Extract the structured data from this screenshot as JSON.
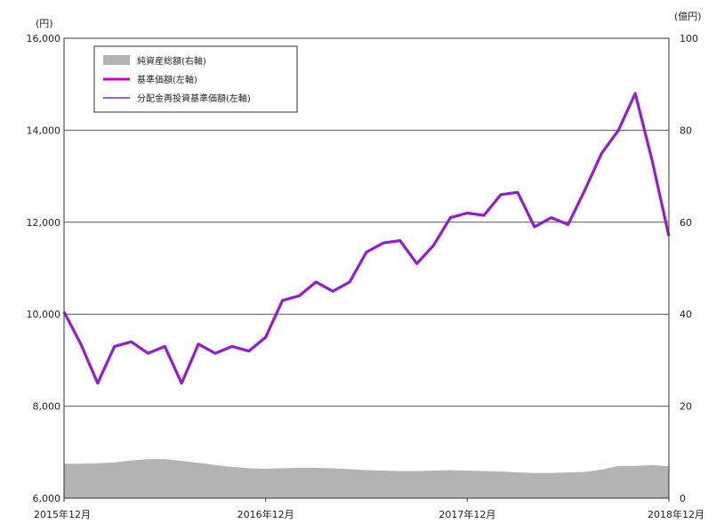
{
  "chart_data": {
    "type": "line",
    "title": "",
    "left_axis": {
      "unit": "(円)",
      "ylim": [
        6000,
        16000
      ],
      "ticks": [
        6000,
        8000,
        10000,
        12000,
        14000,
        16000
      ],
      "tick_labels": [
        "6,000",
        "8,000",
        "10,000",
        "12,000",
        "14,000",
        "16,000"
      ]
    },
    "right_axis": {
      "unit": "(億円)",
      "ylim": [
        0,
        100
      ],
      "ticks": [
        0,
        20,
        40,
        60,
        80,
        100
      ],
      "tick_labels": [
        "0",
        "20",
        "40",
        "60",
        "80",
        "100"
      ]
    },
    "x_axis": {
      "range": [
        "2015-12",
        "2018-12"
      ],
      "ticks": [
        "2015-12",
        "2016-12",
        "2017-12",
        "2018-12"
      ],
      "tick_labels": [
        "2015年12月",
        "2016年12月",
        "2017年12月",
        "2018年12月"
      ]
    },
    "grid": "horizontal",
    "legend_position": "top-left",
    "series": [
      {
        "name": "純資産総額(右軸)",
        "kind": "area",
        "axis": "right",
        "color": "#b3b3b3",
        "x": [
          "2015-12",
          "2016-01",
          "2016-02",
          "2016-03",
          "2016-04",
          "2016-05",
          "2016-06",
          "2016-07",
          "2016-08",
          "2016-09",
          "2016-10",
          "2016-11",
          "2016-12",
          "2017-01",
          "2017-02",
          "2017-03",
          "2017-04",
          "2017-05",
          "2017-06",
          "2017-07",
          "2017-08",
          "2017-09",
          "2017-10",
          "2017-11",
          "2017-12",
          "2018-01",
          "2018-02",
          "2018-03",
          "2018-04",
          "2018-05",
          "2018-06",
          "2018-07",
          "2018-08",
          "2018-09",
          "2018-10",
          "2018-11",
          "2018-12"
        ],
        "values": [
          7.5,
          7.5,
          7.6,
          7.8,
          8.2,
          8.5,
          8.5,
          8.1,
          7.7,
          7.2,
          6.8,
          6.5,
          6.4,
          6.5,
          6.6,
          6.6,
          6.5,
          6.3,
          6.1,
          6.0,
          5.9,
          5.9,
          6.0,
          6.1,
          6.0,
          5.9,
          5.8,
          5.6,
          5.5,
          5.5,
          5.6,
          5.7,
          6.2,
          7.0,
          7.0,
          7.2,
          6.9
        ]
      },
      {
        "name": "基準価額(左軸)",
        "kind": "line",
        "axis": "left",
        "color": "#cc00cc",
        "x": [
          "2015-12",
          "2016-01",
          "2016-02",
          "2016-03",
          "2016-04",
          "2016-05",
          "2016-06",
          "2016-07",
          "2016-08",
          "2016-09",
          "2016-10",
          "2016-11",
          "2016-12",
          "2017-01",
          "2017-02",
          "2017-03",
          "2017-04",
          "2017-05",
          "2017-06",
          "2017-07",
          "2017-08",
          "2017-09",
          "2017-10",
          "2017-11",
          "2017-12",
          "2018-01",
          "2018-02",
          "2018-03",
          "2018-04",
          "2018-05",
          "2018-06",
          "2018-07",
          "2018-08",
          "2018-09",
          "2018-10",
          "2018-11",
          "2018-12"
        ],
        "values": [
          10050,
          9350,
          8500,
          9300,
          9400,
          9150,
          9300,
          8500,
          9350,
          9150,
          9300,
          9200,
          9500,
          10300,
          10400,
          10700,
          10500,
          10700,
          11350,
          11550,
          11600,
          11100,
          11500,
          12100,
          12200,
          12150,
          12600,
          12650,
          11900,
          12100,
          11950,
          12700,
          13500,
          14000,
          14800,
          13350,
          11700
        ]
      },
      {
        "name": "分配金再投資基準価額(左軸)",
        "kind": "line",
        "axis": "left",
        "color": "#6633cc",
        "x": [
          "2015-12",
          "2016-01",
          "2016-02",
          "2016-03",
          "2016-04",
          "2016-05",
          "2016-06",
          "2016-07",
          "2016-08",
          "2016-09",
          "2016-10",
          "2016-11",
          "2016-12",
          "2017-01",
          "2017-02",
          "2017-03",
          "2017-04",
          "2017-05",
          "2017-06",
          "2017-07",
          "2017-08",
          "2017-09",
          "2017-10",
          "2017-11",
          "2017-12",
          "2018-01",
          "2018-02",
          "2018-03",
          "2018-04",
          "2018-05",
          "2018-06",
          "2018-07",
          "2018-08",
          "2018-09",
          "2018-10",
          "2018-11",
          "2018-12"
        ],
        "values": [
          10050,
          9350,
          8500,
          9300,
          9400,
          9150,
          9300,
          8500,
          9350,
          9150,
          9300,
          9200,
          9500,
          10300,
          10400,
          10700,
          10500,
          10700,
          11350,
          11550,
          11600,
          11100,
          11500,
          12100,
          12200,
          12150,
          12600,
          12650,
          11900,
          12100,
          11950,
          12700,
          13500,
          14000,
          14800,
          13350,
          11700
        ]
      }
    ]
  }
}
